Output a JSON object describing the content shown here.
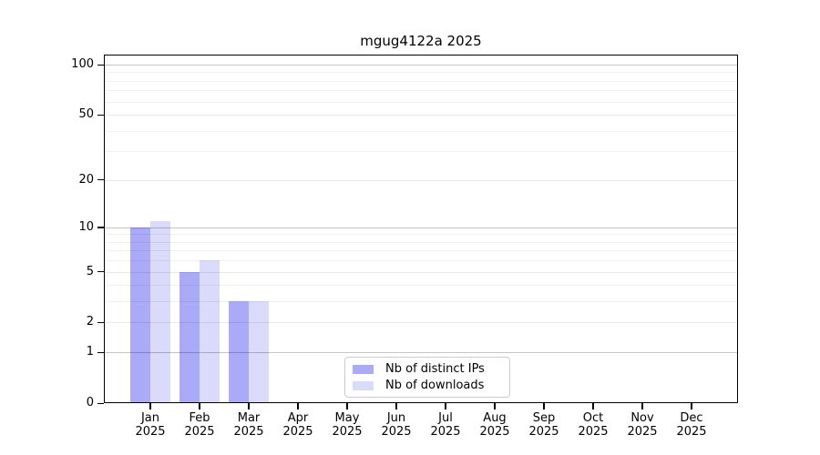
{
  "window": {
    "background": "#ffffff"
  },
  "chart_data": {
    "type": "bar",
    "title": "mgug4122a 2025",
    "x_axis": {
      "categories": [
        "Jan",
        "Feb",
        "Mar",
        "Apr",
        "May",
        "Jun",
        "Jul",
        "Aug",
        "Sep",
        "Oct",
        "Nov",
        "Dec"
      ],
      "year": "2025"
    },
    "y_axis": {
      "scale": "log1p",
      "major_ticks": [
        0,
        1,
        2,
        5,
        10,
        20,
        50,
        100
      ],
      "minor_ticks": [
        3,
        4,
        6,
        7,
        8,
        9,
        30,
        40,
        60,
        70,
        80,
        90
      ],
      "range": [
        0,
        115
      ]
    },
    "series": [
      {
        "name": "Nb of distinct IPs",
        "color": "#aaaaf9",
        "values": [
          10,
          5,
          3,
          0,
          0,
          0,
          0,
          0,
          0,
          0,
          0,
          0
        ]
      },
      {
        "name": "Nb of downloads",
        "color": "#dadafa",
        "values": [
          11,
          6,
          3,
          0,
          0,
          0,
          0,
          0,
          0,
          0,
          0,
          0
        ]
      }
    ],
    "legend": {
      "position": "bottom-center"
    },
    "grid": true
  }
}
